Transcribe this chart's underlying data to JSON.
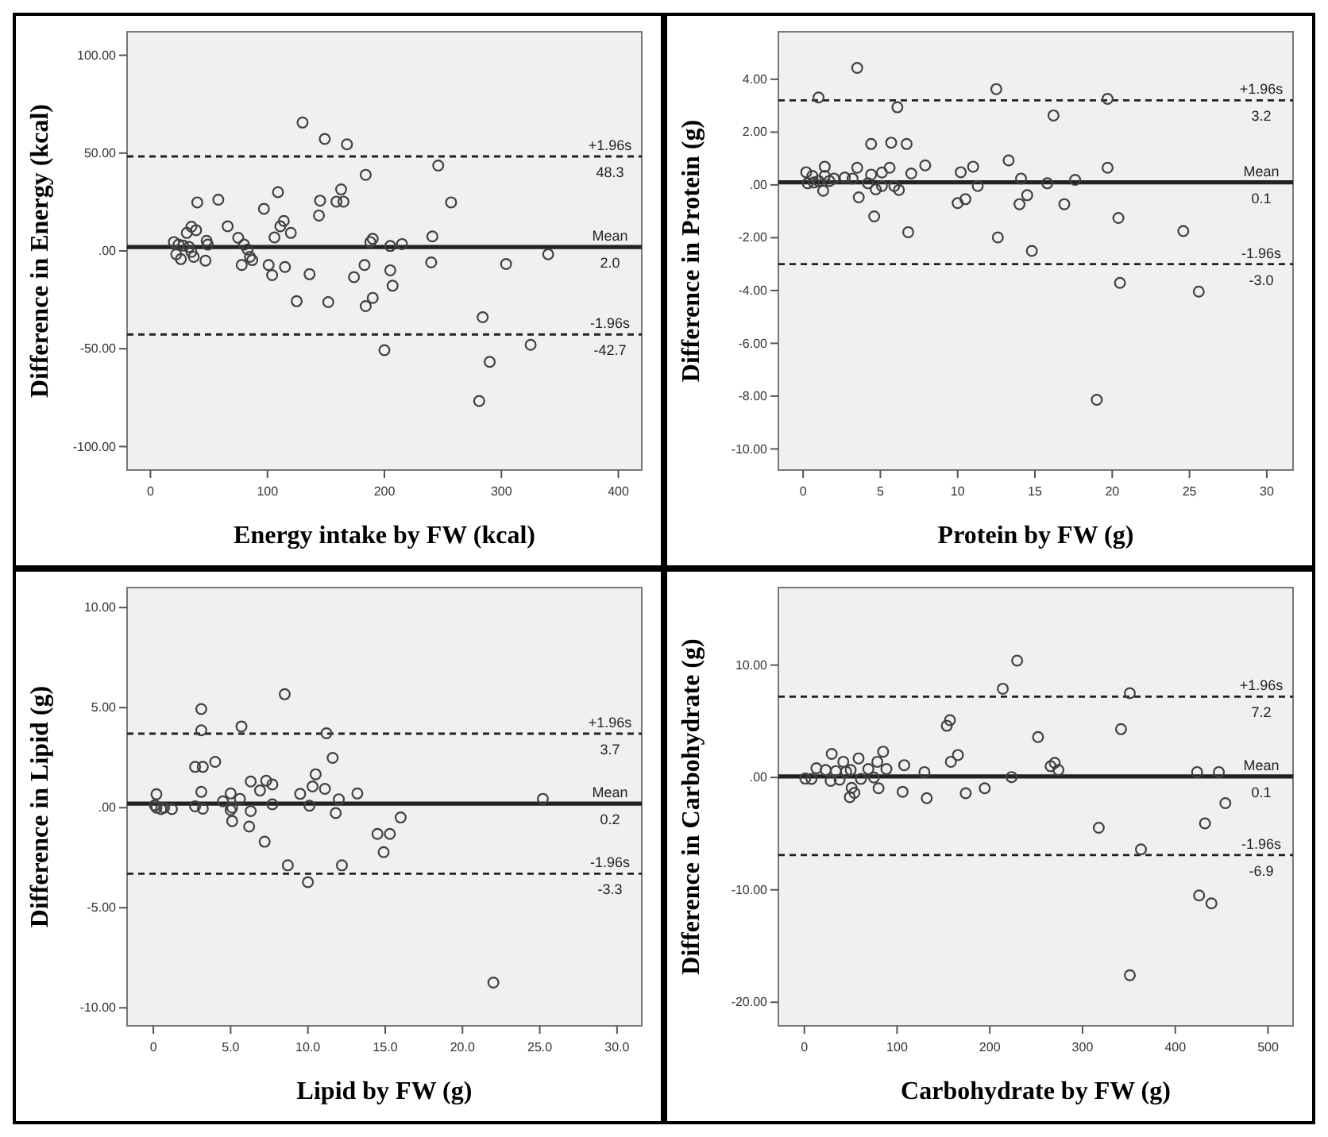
{
  "chart_data": [
    {
      "type": "scatter",
      "xlabel": "Energy intake by FW (kcal)",
      "ylabel": "Difference in Energy (kcal)",
      "marker": "circle",
      "grid": false,
      "xlim": [
        -20,
        420
      ],
      "ylim": [
        -112,
        112
      ],
      "xticks": [
        0,
        100,
        200,
        300,
        400
      ],
      "yticks": [
        {
          "value": 100,
          "label": "100.00"
        },
        {
          "value": 50,
          "label": "50.00"
        },
        {
          "value": 0,
          "label": ".00"
        },
        {
          "value": -50,
          "label": "-50.00"
        },
        {
          "value": -100,
          "label": "-100.00"
        }
      ],
      "series": [
        {
          "color": "#404040",
          "x": [
            130,
            149,
            168,
            184,
            246,
            257,
            40,
            58,
            109,
            97,
            144,
            145,
            163,
            159,
            165,
            66,
            114,
            111,
            120,
            106,
            35,
            39,
            31,
            75,
            241,
            190,
            188,
            215,
            205,
            48,
            49,
            20,
            24,
            28,
            33,
            22,
            35,
            26,
            37,
            47,
            80,
            83,
            85,
            78,
            87,
            101,
            104,
            115,
            136,
            174,
            183,
            205,
            207,
            240,
            304,
            340,
            125,
            152,
            184,
            190,
            284,
            200,
            325,
            290,
            281
          ],
          "values": [
            65.6,
            57.2,
            54.5,
            38.9,
            43.6,
            24.8,
            24.8,
            26.2,
            30,
            21.5,
            18.1,
            25.7,
            31.4,
            25.2,
            25.2,
            12.6,
            15.3,
            12.6,
            9.2,
            6.9,
            12.4,
            10.6,
            9.2,
            6.7,
            7.4,
            6.2,
            4.5,
            3.5,
            2.5,
            5.2,
            3.2,
            4.5,
            3.2,
            2.7,
            2,
            -1.7,
            -0.5,
            -4.2,
            -3,
            -5,
            3.2,
            0.7,
            -3,
            -7.2,
            -4.7,
            -7.2,
            -12.4,
            -8.2,
            -11.9,
            -13.4,
            -7.2,
            -9.9,
            -17.8,
            -5.9,
            -6.7,
            -1.7,
            -25.7,
            -26.2,
            -28.2,
            -24,
            -33.9,
            -50.7,
            -48,
            -56.7,
            -76.7
          ]
        }
      ],
      "ref_lines": [
        {
          "axis": "y",
          "value": 48.3,
          "label": "+1.96s 48.3",
          "line_style": "dashed"
        },
        {
          "axis": "y",
          "value": 2.0,
          "label": "Mean 2.0",
          "line_style": "solid"
        },
        {
          "axis": "y",
          "value": -42.7,
          "label": "-1.96s -42.7",
          "line_style": "dashed"
        }
      ]
    },
    {
      "type": "scatter",
      "xlabel": "Protein by FW (g)",
      "ylabel": "Difference in Protein (g)",
      "marker": "circle",
      "grid": false,
      "xlim": [
        -1.6,
        31.7
      ],
      "ylim": [
        -10.8,
        5.8
      ],
      "xticks": [
        0,
        5,
        10,
        15,
        20,
        25,
        30
      ],
      "yticks": [
        {
          "value": 4,
          "label": "4.00"
        },
        {
          "value": 2,
          "label": "2.00"
        },
        {
          "value": 0,
          "label": ".00"
        },
        {
          "value": -2,
          "label": "-2.00"
        },
        {
          "value": -4,
          "label": "-4.00"
        },
        {
          "value": -6,
          "label": "-6.00"
        },
        {
          "value": -8,
          "label": "-8.00"
        },
        {
          "value": -10,
          "label": "-10.00"
        }
      ],
      "series": [
        {
          "color": "#404040",
          "x": [
            3.5,
            1.0,
            12.5,
            19.7,
            6.1,
            16.2,
            4.4,
            5.7,
            6.7,
            13.3,
            7.9,
            11.0,
            19.7,
            3.5,
            5.6,
            1.4,
            7.0,
            10.2,
            5.1,
            4.4,
            14.1,
            17.6,
            15.8,
            11.3,
            0.2,
            0.6,
            0.3,
            0.7,
            1.0,
            1.4,
            1.7,
            2.0,
            2.7,
            3.2,
            4.2,
            5.1,
            5.9,
            6.2,
            4.7,
            1.3,
            3.6,
            10.0,
            10.5,
            14.0,
            14.5,
            16.9,
            4.6,
            20.4,
            6.8,
            12.6,
            24.6,
            14.8,
            20.5,
            25.6,
            19.0
          ],
          "values": [
            4.43,
            3.31,
            3.63,
            3.26,
            2.94,
            2.63,
            1.55,
            1.6,
            1.55,
            0.93,
            0.74,
            0.69,
            0.65,
            0.65,
            0.65,
            0.69,
            0.43,
            0.48,
            0.47,
            0.39,
            0.24,
            0.19,
            0.06,
            -0.04,
            0.48,
            0.34,
            0.06,
            0.09,
            0.15,
            0.34,
            0.15,
            0.24,
            0.28,
            0.24,
            0.06,
            -0.04,
            -0.04,
            -0.19,
            -0.17,
            -0.22,
            -0.47,
            -0.69,
            -0.54,
            -0.73,
            -0.39,
            -0.73,
            -1.19,
            -1.25,
            -1.79,
            -1.99,
            -1.75,
            -2.5,
            -3.71,
            -4.04,
            -8.14
          ]
        }
      ],
      "ref_lines": [
        {
          "axis": "y",
          "value": 3.2,
          "label": "+1.96s 3.2",
          "line_style": "dashed"
        },
        {
          "axis": "y",
          "value": 0.1,
          "label": "Mean 0.1",
          "line_style": "solid"
        },
        {
          "axis": "y",
          "value": -3.0,
          "label": "-1.96s -3.0",
          "line_style": "dashed"
        }
      ]
    },
    {
      "type": "scatter",
      "xlabel": "Lipid by FW (g)",
      "ylabel": "Difference in Lipid (g)",
      "marker": "circle",
      "grid": false,
      "xlim": [
        -1.7,
        31.6
      ],
      "ylim": [
        -10.9,
        11
      ],
      "xticks": [
        0,
        {
          "value": 5,
          "label": "5.0"
        },
        {
          "value": 10,
          "label": "10.0"
        },
        {
          "value": 15,
          "label": "15.0"
        },
        {
          "value": 20,
          "label": "20.0"
        },
        {
          "value": 25,
          "label": "25.0"
        },
        {
          "value": 30,
          "label": "30.0"
        }
      ],
      "yticks": [
        {
          "value": 10,
          "label": "10.00"
        },
        {
          "value": 5,
          "label": "5.00"
        },
        {
          "value": 0,
          "label": ".00"
        },
        {
          "value": -5,
          "label": "-5.00"
        },
        {
          "value": -10,
          "label": "-10.00"
        }
      ],
      "series": [
        {
          "color": "#404040",
          "x": [
            8.5,
            3.1,
            3.1,
            5.7,
            11.2,
            11.6,
            2.7,
            3.2,
            4.0,
            10.5,
            6.3,
            7.3,
            7.7,
            6.9,
            10.3,
            11.1,
            9.5,
            13.2,
            3.1,
            0.2,
            5.0,
            5.6,
            4.5,
            12.0,
            25.2,
            2.7,
            3.2,
            5.1,
            5.0,
            7.7,
            10.1,
            6.3,
            11.8,
            0.1,
            0.2,
            0.5,
            0.7,
            1.2,
            5.1,
            6.2,
            16.0,
            7.2,
            14.5,
            15.3,
            14.9,
            8.7,
            12.2,
            10.0,
            22.0
          ],
          "values": [
            5.67,
            4.93,
            3.87,
            4.06,
            3.72,
            2.49,
            2.04,
            2.04,
            2.29,
            1.67,
            1.31,
            1.35,
            1.16,
            0.86,
            1.06,
            0.94,
            0.69,
            0.71,
            0.79,
            0.67,
            0.71,
            0.44,
            0.32,
            0.42,
            0.44,
            0.07,
            -0.05,
            0,
            -0.12,
            0.17,
            0.1,
            -0.17,
            -0.27,
            0.12,
            0,
            -0.07,
            0,
            -0.07,
            -0.67,
            -0.94,
            -0.49,
            -1.7,
            -1.31,
            -1.31,
            -2.22,
            -2.88,
            -2.88,
            -3.72,
            -8.74
          ]
        }
      ],
      "ref_lines": [
        {
          "axis": "y",
          "value": 3.7,
          "label": "+1.96s 3.7",
          "line_style": "dashed"
        },
        {
          "axis": "y",
          "value": 0.2,
          "label": "Mean 0.2",
          "line_style": "solid"
        },
        {
          "axis": "y",
          "value": -3.3,
          "label": "-1.96s -3.3",
          "line_style": "dashed"
        }
      ]
    },
    {
      "type": "scatter",
      "xlabel": "Carbohydrate by FW (g)",
      "ylabel": "Difference in Carbohydrate (g)",
      "marker": "circle",
      "grid": false,
      "xlim": [
        -28,
        527
      ],
      "ylim": [
        -22.1,
        16.9
      ],
      "xticks": [
        0,
        100,
        200,
        300,
        400,
        500
      ],
      "yticks": [
        {
          "value": 10,
          "label": "10.00"
        },
        {
          "value": 0,
          "label": ".00"
        },
        {
          "value": -10,
          "label": "-10.00"
        },
        {
          "value": -20,
          "label": "-20.00"
        }
      ],
      "series": [
        {
          "color": "#404040",
          "x": [
            229.5,
            214,
            351,
            157,
            153.6,
            341.5,
            252,
            29.5,
            85,
            58.5,
            165.6,
            42,
            78.7,
            158,
            107.7,
            270,
            265.6,
            274,
            13,
            23,
            34,
            45,
            50,
            69,
            88.5,
            61,
            75,
            129.5,
            423.5,
            447,
            223.5,
            1,
            7.7,
            28.4,
            38,
            80,
            106,
            51,
            54,
            49,
            194.5,
            174,
            132,
            454,
            317.5,
            432,
            363,
            425.7,
            439,
            351
          ],
          "values": [
            10.4,
            7.9,
            7.5,
            5.1,
            4.6,
            4.3,
            3.6,
            2.1,
            2.3,
            1.7,
            2.0,
            1.4,
            1.4,
            1.4,
            1.1,
            1.3,
            1.0,
            0.66,
            0.83,
            0.66,
            0.57,
            0.53,
            0.66,
            0.75,
            0.75,
            -0.13,
            0,
            0.48,
            0.48,
            0.48,
            0.04,
            -0.1,
            -0.13,
            -0.3,
            -0.2,
            -0.96,
            -1.27,
            -0.92,
            -1.36,
            -1.75,
            -0.96,
            -1.4,
            -1.84,
            -2.28,
            -4.47,
            -4.08,
            -6.4,
            -10.5,
            -11.2,
            -17.6
          ]
        }
      ],
      "ref_lines": [
        {
          "axis": "y",
          "value": 7.2,
          "label": "+1.96s 7.2",
          "line_style": "dashed"
        },
        {
          "axis": "y",
          "value": 0.1,
          "label": "Mean 0.1",
          "line_style": "solid"
        },
        {
          "axis": "y",
          "value": -6.9,
          "label": "-1.96s -6.9",
          "line_style": "dashed"
        }
      ]
    }
  ]
}
